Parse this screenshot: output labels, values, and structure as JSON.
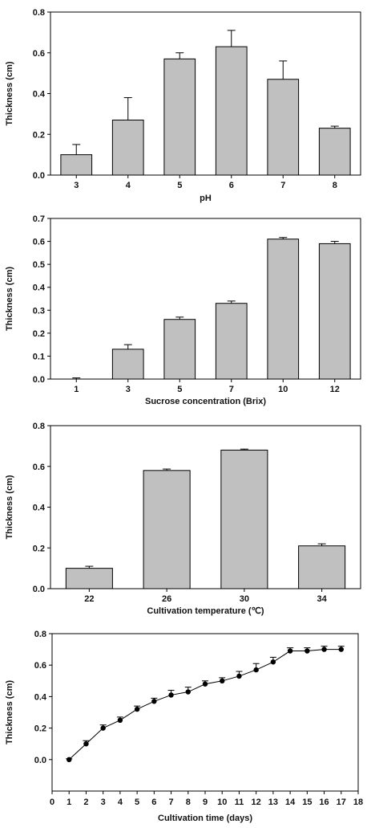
{
  "chart_data": [
    {
      "type": "bar",
      "xlabel": "pH",
      "ylabel": "Thickness (cm)",
      "categories": [
        "3",
        "4",
        "5",
        "6",
        "7",
        "8"
      ],
      "values": [
        0.1,
        0.27,
        0.57,
        0.63,
        0.47,
        0.23
      ],
      "errors": [
        0.05,
        0.11,
        0.03,
        0.08,
        0.09,
        0.01
      ],
      "ylim": [
        0,
        0.8
      ],
      "yticks": [
        "0.0",
        "0.2",
        "0.4",
        "0.6",
        "0.8"
      ],
      "bar_color": "#c0c0c0"
    },
    {
      "type": "bar",
      "xlabel": "Sucrose concentration (Brix)",
      "ylabel": "Thickness (cm)",
      "categories": [
        "1",
        "3",
        "5",
        "7",
        "10",
        "12"
      ],
      "values": [
        0.0,
        0.13,
        0.26,
        0.33,
        0.61,
        0.59
      ],
      "errors": [
        0.005,
        0.02,
        0.01,
        0.01,
        0.007,
        0.01
      ],
      "ylim": [
        0,
        0.7
      ],
      "yticks": [
        "0.0",
        "0.1",
        "0.2",
        "0.3",
        "0.4",
        "0.5",
        "0.6",
        "0.7"
      ],
      "bar_color": "#c0c0c0"
    },
    {
      "type": "bar",
      "xlabel": "Cultivation temperature (℃)",
      "ylabel": "Thickness (cm)",
      "categories": [
        "22",
        "26",
        "30",
        "34"
      ],
      "values": [
        0.1,
        0.58,
        0.68,
        0.21
      ],
      "errors": [
        0.01,
        0.007,
        0.005,
        0.01
      ],
      "ylim": [
        0,
        0.8
      ],
      "yticks": [
        "0.0",
        "0.2",
        "0.4",
        "0.6",
        "0.8"
      ],
      "bar_color": "#c0c0c0"
    },
    {
      "type": "line",
      "xlabel": "Cultivation time (days)",
      "ylabel": "Thickness (cm)",
      "x": [
        1,
        2,
        3,
        4,
        5,
        6,
        7,
        8,
        9,
        10,
        11,
        12,
        13,
        14,
        15,
        16,
        17
      ],
      "values": [
        0.0,
        0.1,
        0.2,
        0.25,
        0.32,
        0.37,
        0.41,
        0.43,
        0.48,
        0.5,
        0.53,
        0.57,
        0.62,
        0.69,
        0.69,
        0.7,
        0.7
      ],
      "errors": [
        0.005,
        0.02,
        0.02,
        0.02,
        0.02,
        0.02,
        0.03,
        0.03,
        0.02,
        0.02,
        0.03,
        0.04,
        0.03,
        0.02,
        0.02,
        0.02,
        0.02
      ],
      "xlim": [
        0,
        18
      ],
      "xticks": [
        "0",
        "1",
        "2",
        "3",
        "4",
        "5",
        "6",
        "7",
        "8",
        "9",
        "10",
        "11",
        "12",
        "13",
        "14",
        "15",
        "16",
        "17",
        "18"
      ],
      "ylim": [
        -0.2,
        0.8
      ],
      "yticks": [
        "0.0",
        "0.2",
        "0.4",
        "0.6",
        "0.8"
      ],
      "line_color": "#000000"
    }
  ]
}
